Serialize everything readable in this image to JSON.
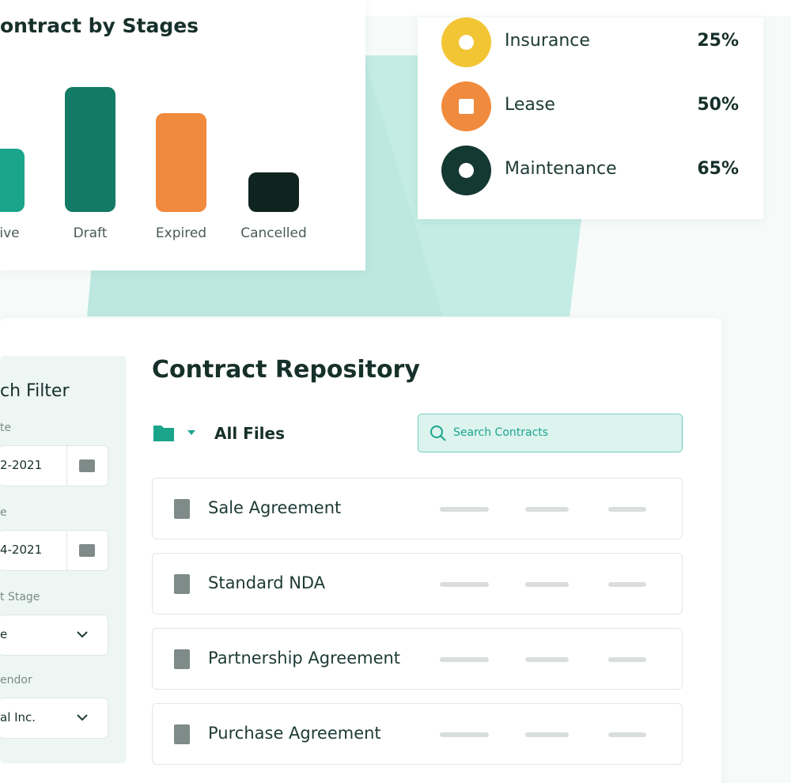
{
  "stages_card": {
    "title": "ontract by Stages",
    "chart_data": {
      "type": "bar",
      "categories": [
        "ive",
        "Draft",
        "Expired",
        "Cancelled"
      ],
      "values": [
        80,
        158,
        125,
        50
      ],
      "colors": [
        "#1aa58b",
        "#137a66",
        "#f08a3c",
        "#10241f"
      ]
    }
  },
  "category_card": {
    "items": [
      {
        "label": "Insurance",
        "percent": "25%"
      },
      {
        "label": "Lease",
        "percent": "50%"
      },
      {
        "label": "Maintenance",
        "percent": "65%"
      }
    ]
  },
  "filter": {
    "title": "ch Filter",
    "fields": [
      {
        "label": "te",
        "value": "2-2021"
      },
      {
        "label": "e",
        "value": "4-2021"
      },
      {
        "label": "t Stage",
        "value": "e"
      },
      {
        "label": "endor",
        "value": "al Inc."
      }
    ]
  },
  "repository": {
    "title": "Contract Repository",
    "folder": "All Files",
    "search_placeholder": "Search Contracts",
    "rows": [
      "Sale Agreement",
      "Standard NDA",
      "Partnership Agreement",
      "Purchase Agreement"
    ]
  }
}
